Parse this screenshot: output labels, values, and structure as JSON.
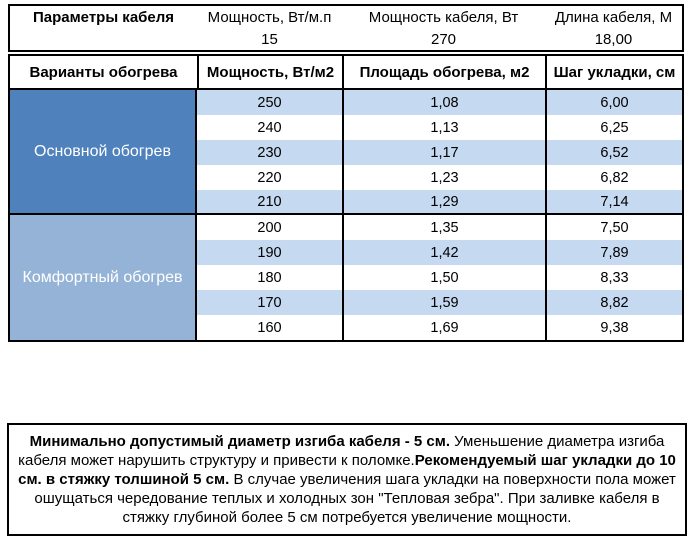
{
  "params": {
    "title": "Параметры кабеля",
    "columns": [
      {
        "label": "Мощность, Вт/м.п",
        "value": "15"
      },
      {
        "label": "Мощность кабеля, Вт",
        "value": "270"
      },
      {
        "label": "Длина кабеля, М",
        "value": "18,00"
      }
    ]
  },
  "table": {
    "headers": [
      "Варианты обогрева",
      "Мощность, Вт/м2",
      "Площадь обогрева, м2",
      "Шаг укладки, см"
    ],
    "groups": [
      {
        "label": "Основной обогрев",
        "color": "#4F81BD",
        "rows": [
          [
            "250",
            "1,08",
            "6,00"
          ],
          [
            "240",
            "1,13",
            "6,25"
          ],
          [
            "230",
            "1,17",
            "6,52"
          ],
          [
            "220",
            "1,23",
            "6,82"
          ],
          [
            "210",
            "1,29",
            "7,14"
          ]
        ]
      },
      {
        "label": "Комфортный обогрев",
        "color": "#95B3D7",
        "rows": [
          [
            "200",
            "1,35",
            "7,50"
          ],
          [
            "190",
            "1,42",
            "7,89"
          ],
          [
            "180",
            "1,50",
            "8,33"
          ],
          [
            "170",
            "1,59",
            "8,82"
          ],
          [
            "160",
            "1,69",
            "9,38"
          ]
        ]
      }
    ]
  },
  "note": {
    "segments": [
      {
        "text": "Минимально допустимый диаметр изгиба кабеля - 5 см.",
        "bold": true
      },
      {
        "text": "  Уменьшение диаметра изгиба кабеля может нарушить структуру и привести к поломке.",
        "bold": false
      },
      {
        "text": "Рекомендуемый шаг укладки до 10 см. в стяжку толшиной 5 см.",
        "bold": true
      },
      {
        "text": " В  случае увеличения шага укладки на поверхности пола может ошущаться чередование теплых и холодных зон \"Тепловая зебра\". При заливке кабеля в стяжку глубиной более 5 см потребуется увеличение мощности.",
        "bold": false
      }
    ]
  },
  "colors": {
    "group1": "#4F81BD",
    "group2": "#95B3D7",
    "band": "#C5D9F1",
    "border": "#000000",
    "group_text": "#FFFFFF"
  }
}
